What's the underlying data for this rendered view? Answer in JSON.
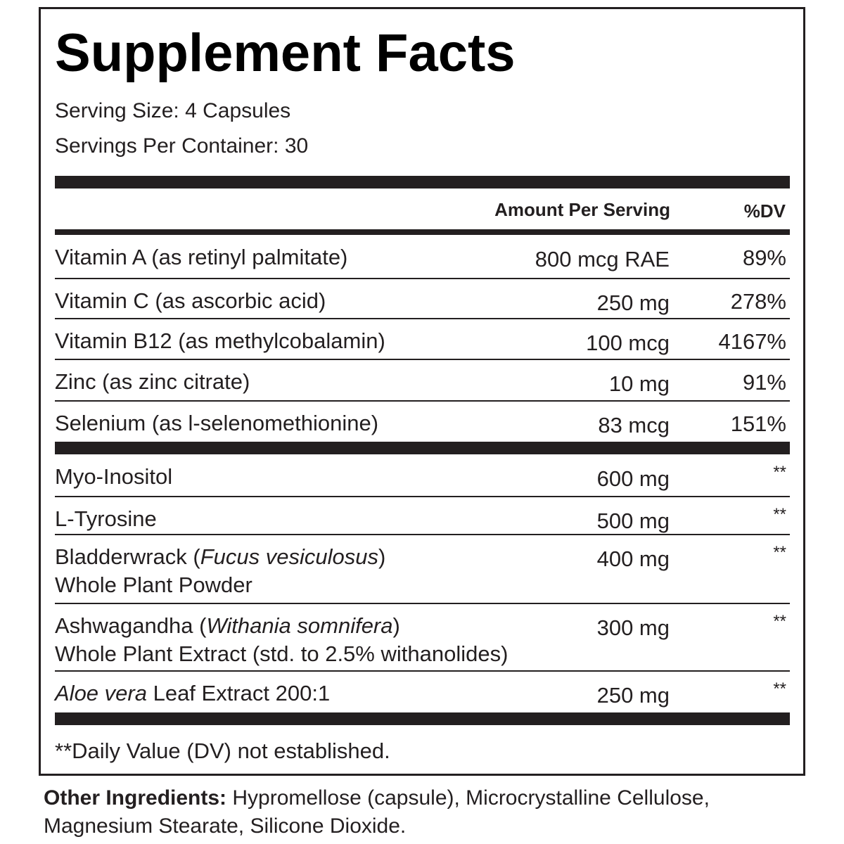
{
  "header": {
    "title": "Supplement Facts",
    "serving_size": "Serving Size: 4 Capsules",
    "servings_per_container": "Servings Per Container: 30"
  },
  "table": {
    "columns": [
      "Amount Per Serving",
      "%DV"
    ],
    "groups": [
      [
        {
          "lines": [
            [
              {
                "text": "Vitamin A (as retinyl palmitate)"
              }
            ]
          ],
          "amount": "800 mcg RAE",
          "dv": "89%"
        },
        {
          "lines": [
            [
              {
                "text": "Vitamin C (as ascorbic acid)"
              }
            ]
          ],
          "amount": "250 mg",
          "dv": "278%"
        },
        {
          "lines": [
            [
              {
                "text": "Vitamin B12 (as methylcobalamin)"
              }
            ]
          ],
          "amount": "100 mcg",
          "dv": "4167%"
        },
        {
          "lines": [
            [
              {
                "text": "Zinc (as zinc citrate)"
              }
            ]
          ],
          "amount": "10 mg",
          "dv": "91%"
        },
        {
          "lines": [
            [
              {
                "text": "Selenium (as l-selenomethionine)"
              }
            ]
          ],
          "amount": "83 mcg",
          "dv": "151%"
        }
      ],
      [
        {
          "lines": [
            [
              {
                "text": "Myo-Inositol"
              }
            ]
          ],
          "amount": "600 mg",
          "dv": "**"
        },
        {
          "lines": [
            [
              {
                "text": "L-Tyrosine"
              }
            ]
          ],
          "amount": "500 mg",
          "dv": "**"
        },
        {
          "lines": [
            [
              {
                "text": "Bladderwrack ("
              },
              {
                "text": "Fucus vesiculosus",
                "italic": true
              },
              {
                "text": ")"
              }
            ],
            [
              {
                "text": "Whole Plant Powder"
              }
            ]
          ],
          "amount": "400 mg",
          "dv": "**"
        },
        {
          "lines": [
            [
              {
                "text": "Ashwagandha ("
              },
              {
                "text": "Withania somnifera",
                "italic": true
              },
              {
                "text": ")"
              }
            ],
            [
              {
                "text": "Whole Plant Extract (std. to 2.5% withanolides)"
              }
            ]
          ],
          "amount": "300 mg",
          "dv": "**"
        },
        {
          "lines": [
            [
              {
                "text": "Aloe vera",
                "italic": true
              },
              {
                "text": " Leaf Extract 200:1"
              }
            ]
          ],
          "amount": "250 mg",
          "dv": "**"
        }
      ]
    ]
  },
  "footnote": "**Daily Value (DV) not established.",
  "other_ingredients": {
    "label": "Other Ingredients:",
    "text": "Hypromellose (capsule), Microcrystalline Cellulose, Magnesium Stearate, Silicone Dioxide."
  }
}
